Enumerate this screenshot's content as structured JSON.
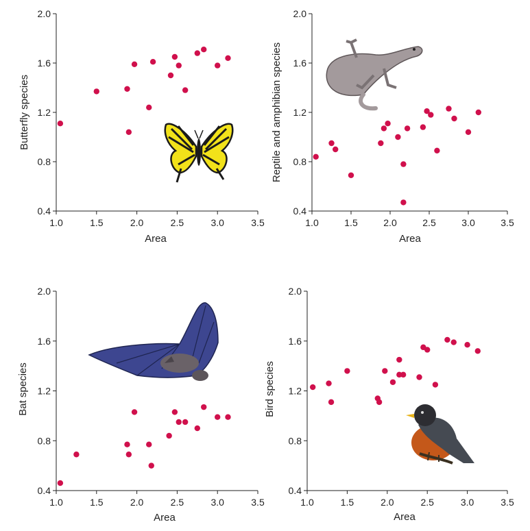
{
  "chart_data": [
    {
      "type": "scatter",
      "xlabel": "Area",
      "ylabel": "Butterfly species",
      "xlim": [
        1.0,
        3.5
      ],
      "ylim": [
        0.4,
        2.0
      ],
      "xticks": [
        "1.0",
        "1.5",
        "2.0",
        "2.5",
        "3.0",
        "3.5"
      ],
      "yticks": [
        "0.4",
        "0.8",
        "1.2",
        "1.6",
        "2.0"
      ],
      "illustration": "butterfly-icon",
      "points": [
        {
          "x": 1.05,
          "y": 1.11
        },
        {
          "x": 1.5,
          "y": 1.37
        },
        {
          "x": 1.88,
          "y": 1.39
        },
        {
          "x": 1.9,
          "y": 1.04
        },
        {
          "x": 1.97,
          "y": 1.59
        },
        {
          "x": 2.15,
          "y": 1.24
        },
        {
          "x": 2.2,
          "y": 1.61
        },
        {
          "x": 2.42,
          "y": 1.5
        },
        {
          "x": 2.47,
          "y": 1.65
        },
        {
          "x": 2.52,
          "y": 1.58
        },
        {
          "x": 2.6,
          "y": 1.38
        },
        {
          "x": 2.75,
          "y": 1.68
        },
        {
          "x": 2.83,
          "y": 1.71
        },
        {
          "x": 3.0,
          "y": 1.58
        },
        {
          "x": 3.13,
          "y": 1.64
        }
      ]
    },
    {
      "type": "scatter",
      "xlabel": "Area",
      "ylabel": "Reptile and amphibian species",
      "xlim": [
        1.0,
        3.5
      ],
      "ylim": [
        0.4,
        2.0
      ],
      "xticks": [
        "1.0",
        "1.5",
        "2.0",
        "2.5",
        "3.0",
        "3.5"
      ],
      "yticks": [
        "0.4",
        "0.8",
        "1.2",
        "1.6",
        "2.0"
      ],
      "illustration": "lizard-icon",
      "points": [
        {
          "x": 1.05,
          "y": 0.84
        },
        {
          "x": 1.25,
          "y": 0.95
        },
        {
          "x": 1.3,
          "y": 0.9
        },
        {
          "x": 1.5,
          "y": 0.69
        },
        {
          "x": 1.88,
          "y": 0.95
        },
        {
          "x": 1.92,
          "y": 1.07
        },
        {
          "x": 1.97,
          "y": 1.11
        },
        {
          "x": 2.1,
          "y": 1.0
        },
        {
          "x": 2.17,
          "y": 0.78
        },
        {
          "x": 2.17,
          "y": 0.47
        },
        {
          "x": 2.22,
          "y": 1.07
        },
        {
          "x": 2.42,
          "y": 1.08
        },
        {
          "x": 2.47,
          "y": 1.21
        },
        {
          "x": 2.52,
          "y": 1.18
        },
        {
          "x": 2.6,
          "y": 0.89
        },
        {
          "x": 2.75,
          "y": 1.23
        },
        {
          "x": 2.82,
          "y": 1.15
        },
        {
          "x": 3.0,
          "y": 1.04
        },
        {
          "x": 3.13,
          "y": 1.2
        }
      ]
    },
    {
      "type": "scatter",
      "xlabel": "Area",
      "ylabel": "Bat species",
      "xlim": [
        1.0,
        3.5
      ],
      "ylim": [
        0.4,
        2.0
      ],
      "xticks": [
        "1.0",
        "1.5",
        "2.0",
        "2.5",
        "3.0",
        "3.5"
      ],
      "yticks": [
        "0.4",
        "0.8",
        "1.2",
        "1.6",
        "2.0"
      ],
      "illustration": "bat-icon",
      "points": [
        {
          "x": 1.05,
          "y": 0.46
        },
        {
          "x": 1.25,
          "y": 0.69
        },
        {
          "x": 1.88,
          "y": 0.77
        },
        {
          "x": 1.9,
          "y": 0.69
        },
        {
          "x": 1.97,
          "y": 1.03
        },
        {
          "x": 2.15,
          "y": 0.77
        },
        {
          "x": 2.18,
          "y": 0.6
        },
        {
          "x": 2.4,
          "y": 0.84
        },
        {
          "x": 2.47,
          "y": 1.03
        },
        {
          "x": 2.52,
          "y": 0.95
        },
        {
          "x": 2.6,
          "y": 0.95
        },
        {
          "x": 2.75,
          "y": 0.9
        },
        {
          "x": 2.83,
          "y": 1.07
        },
        {
          "x": 3.0,
          "y": 0.99
        },
        {
          "x": 3.13,
          "y": 0.99
        }
      ]
    },
    {
      "type": "scatter",
      "xlabel": "Area",
      "ylabel": "Bird species",
      "xlim": [
        1.0,
        3.5
      ],
      "ylim": [
        0.4,
        2.0
      ],
      "xticks": [
        "1.0",
        "1.5",
        "2.0",
        "2.5",
        "3.0",
        "3.5"
      ],
      "yticks": [
        "0.4",
        "0.8",
        "1.2",
        "1.6",
        "2.0"
      ],
      "illustration": "bird-icon",
      "points": [
        {
          "x": 1.07,
          "y": 1.23
        },
        {
          "x": 1.27,
          "y": 1.26
        },
        {
          "x": 1.3,
          "y": 1.11
        },
        {
          "x": 1.5,
          "y": 1.36
        },
        {
          "x": 1.88,
          "y": 1.14
        },
        {
          "x": 1.9,
          "y": 1.11
        },
        {
          "x": 1.97,
          "y": 1.36
        },
        {
          "x": 2.07,
          "y": 1.27
        },
        {
          "x": 2.15,
          "y": 1.45
        },
        {
          "x": 2.15,
          "y": 1.33
        },
        {
          "x": 2.2,
          "y": 1.33
        },
        {
          "x": 2.4,
          "y": 1.31
        },
        {
          "x": 2.45,
          "y": 1.55
        },
        {
          "x": 2.5,
          "y": 1.53
        },
        {
          "x": 2.6,
          "y": 1.25
        },
        {
          "x": 2.75,
          "y": 1.61
        },
        {
          "x": 2.83,
          "y": 1.59
        },
        {
          "x": 3.0,
          "y": 1.57
        },
        {
          "x": 3.13,
          "y": 1.52
        }
      ]
    }
  ],
  "colors": {
    "point": "#d0104c",
    "axis": "#222222",
    "butterfly_yellow": "#f2e21a",
    "butterfly_black": "#1b1b1b",
    "lizard_body": "#a39a9c",
    "bat_wing": "#3d4690",
    "bird_breast": "#c4581a",
    "bird_back": "#454a52"
  }
}
